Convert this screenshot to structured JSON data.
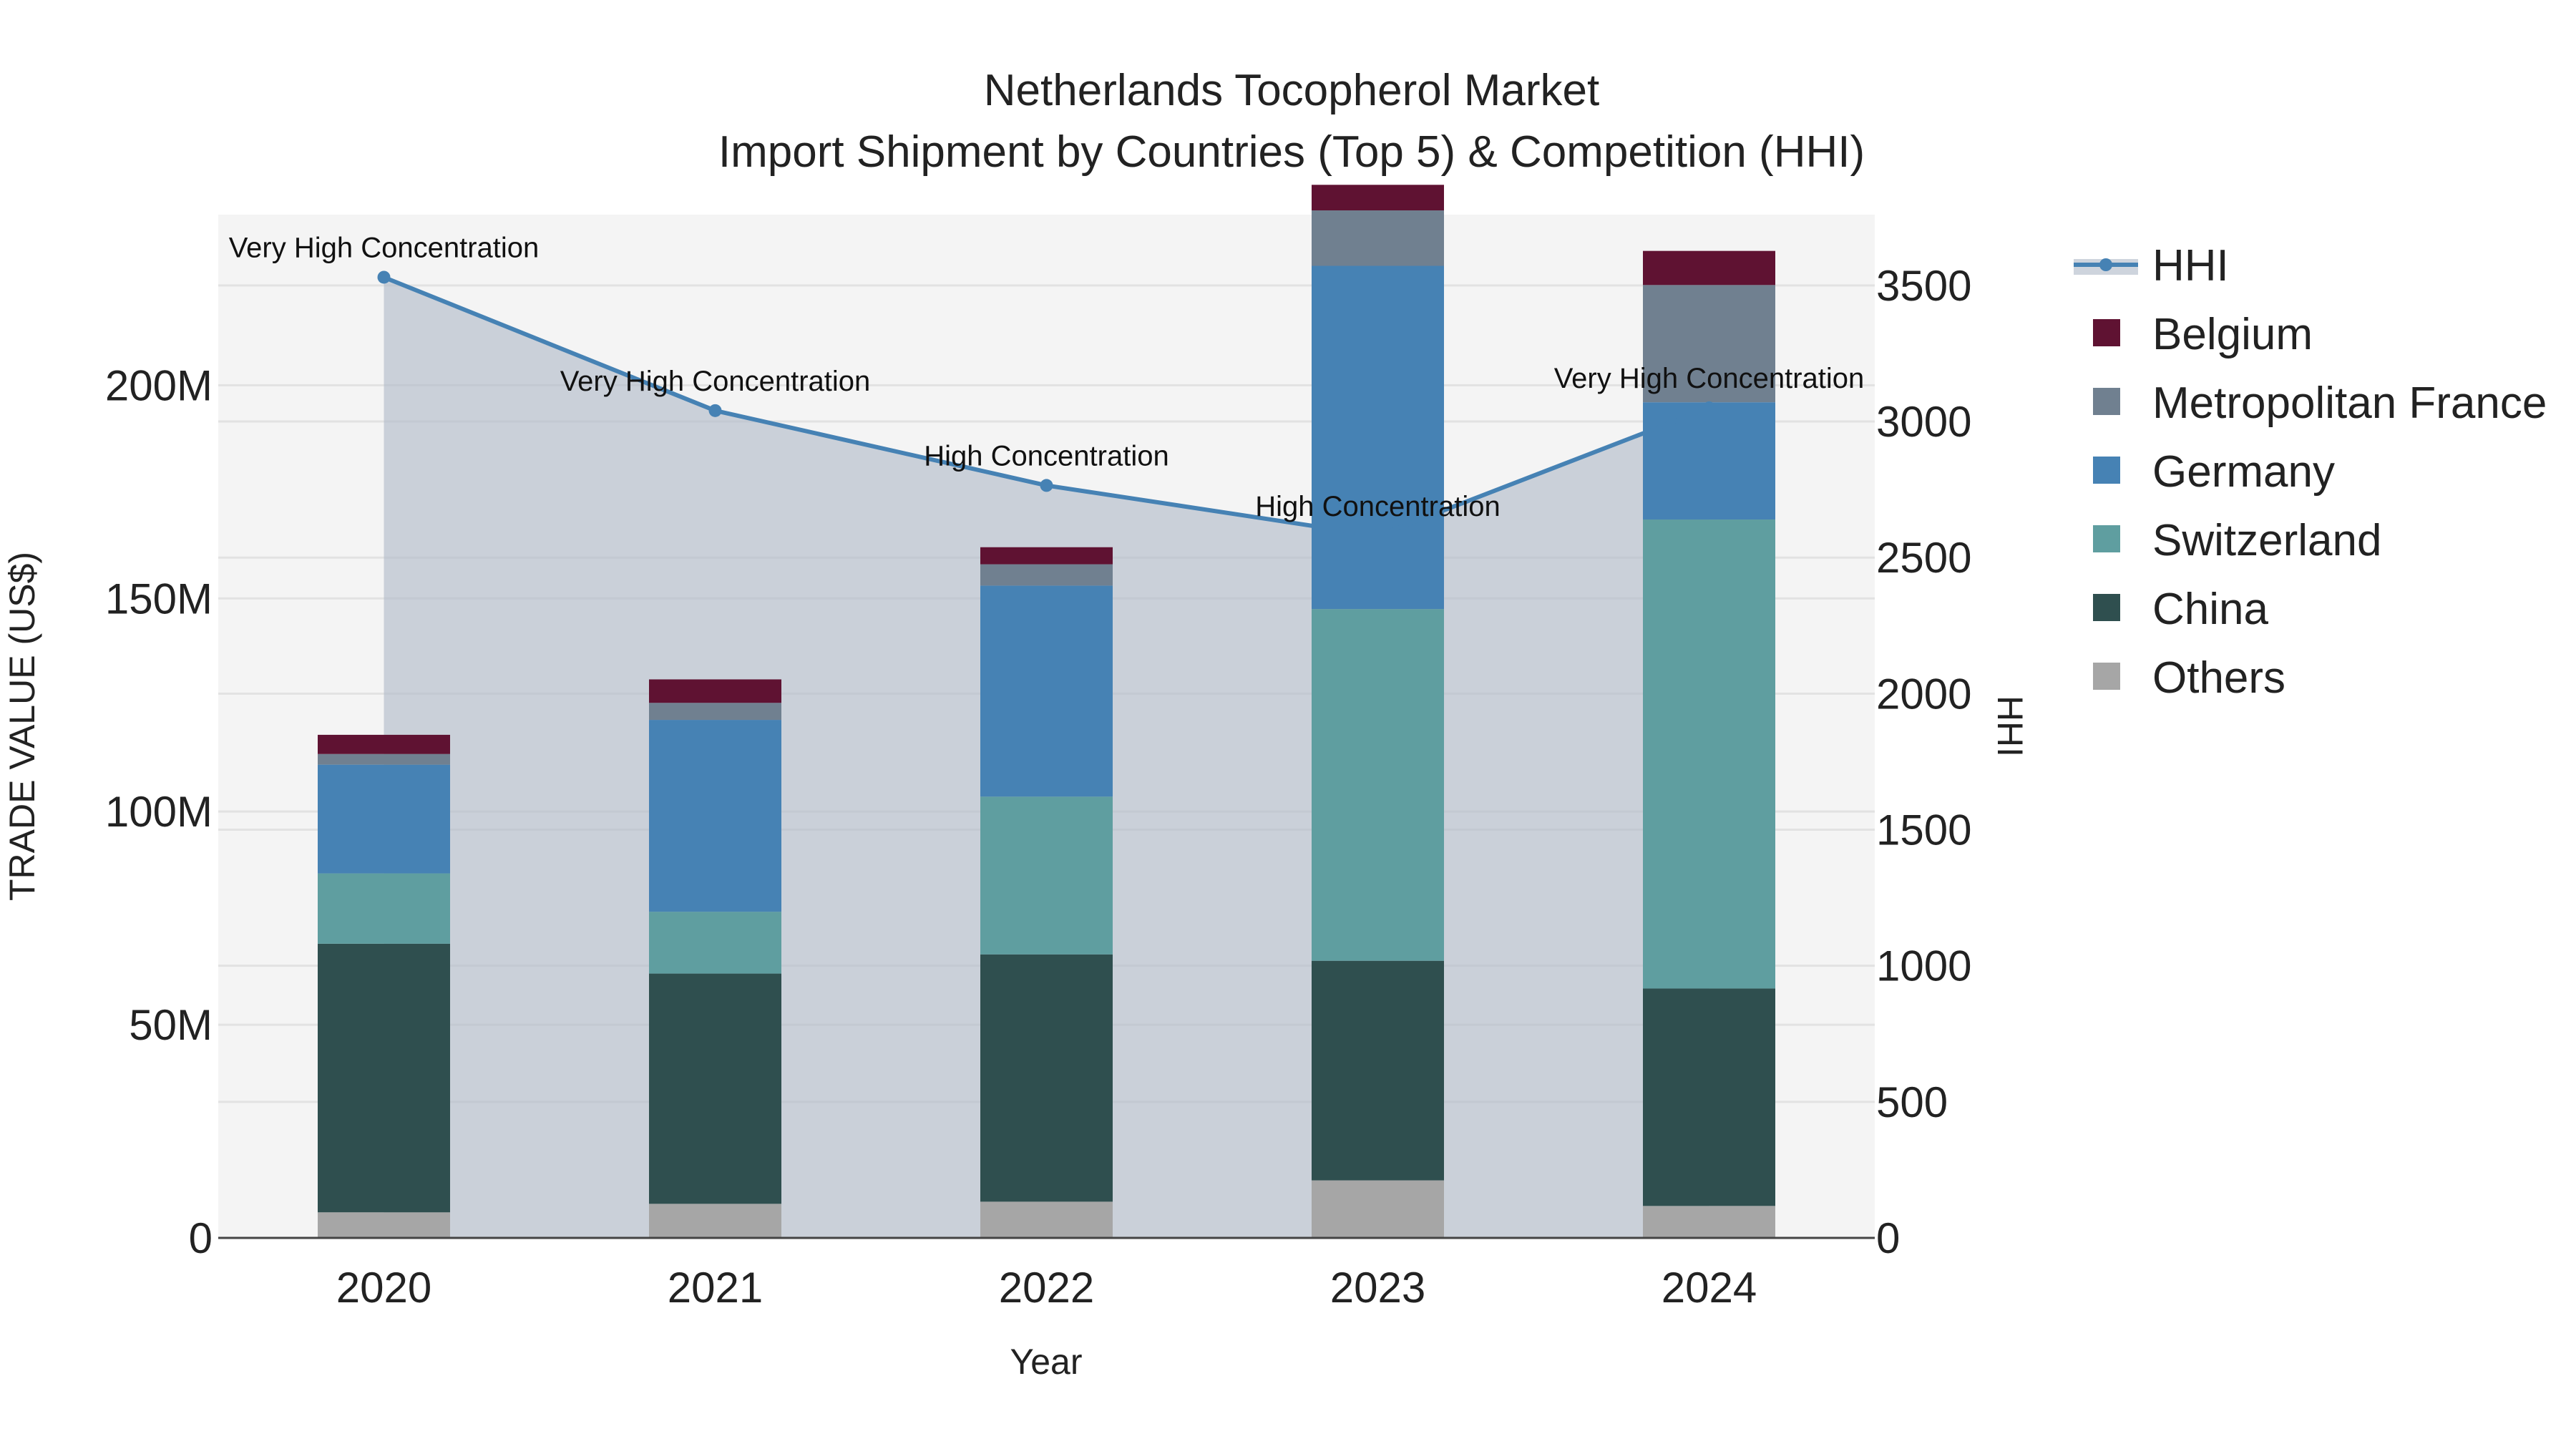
{
  "chart_data": {
    "type": "bar",
    "title": "Netherlands Tocopherol Market",
    "subtitle": "Import Shipment by Countries (Top 5) & Competition (HHI)",
    "xlabel": "Year",
    "ylabel": "TRADE VALUE (US$)",
    "y2label": "HHI",
    "categories": [
      "2020",
      "2021",
      "2022",
      "2023",
      "2024"
    ],
    "ylim": [
      0,
      240000000
    ],
    "y2lim": [
      0,
      3760
    ],
    "y_ticks": [
      {
        "value": 0,
        "label": "0"
      },
      {
        "value": 50000000,
        "label": "50M"
      },
      {
        "value": 100000000,
        "label": "100M"
      },
      {
        "value": 150000000,
        "label": "150M"
      },
      {
        "value": 200000000,
        "label": "200M"
      }
    ],
    "y2_ticks": [
      {
        "value": 0,
        "label": "0"
      },
      {
        "value": 500,
        "label": "500"
      },
      {
        "value": 1000,
        "label": "1000"
      },
      {
        "value": 1500,
        "label": "1500"
      },
      {
        "value": 2000,
        "label": "2000"
      },
      {
        "value": 2500,
        "label": "2500"
      },
      {
        "value": 3000,
        "label": "3000"
      },
      {
        "value": 3500,
        "label": "3500"
      }
    ],
    "series": [
      {
        "name": "Others",
        "color": "#a6a6a6",
        "values": [
          6000000,
          8000000,
          8500000,
          13500000,
          7500000
        ]
      },
      {
        "name": "China",
        "color": "#2f4f4f",
        "values": [
          63000000,
          54000000,
          58000000,
          51500000,
          51000000
        ]
      },
      {
        "name": "Switzerland",
        "color": "#5f9ea0",
        "values": [
          16500000,
          14500000,
          37000000,
          82500000,
          110000000
        ]
      },
      {
        "name": "Germany",
        "color": "#4682b4",
        "values": [
          25500000,
          45000000,
          49500000,
          80500000,
          27500000
        ]
      },
      {
        "name": "Metropolitan France",
        "color": "#708090",
        "values": [
          2500000,
          4000000,
          5000000,
          13000000,
          27500000
        ]
      },
      {
        "name": "Belgium",
        "color": "#5f1232",
        "values": [
          4500000,
          5500000,
          4000000,
          6000000,
          8000000
        ]
      }
    ],
    "hhi": {
      "name": "HHI",
      "color": "#4682b4",
      "values": [
        3530,
        3040,
        2765,
        2580,
        3050
      ],
      "annotations": [
        "Very High Concentration",
        "Very High Concentration",
        "High Concentration",
        "High Concentration",
        "Very High Concentration"
      ]
    },
    "legend": [
      "HHI",
      "Belgium",
      "Metropolitan France",
      "Germany",
      "Switzerland",
      "China",
      "Others"
    ],
    "legend_position": "top-right",
    "grid": true
  }
}
